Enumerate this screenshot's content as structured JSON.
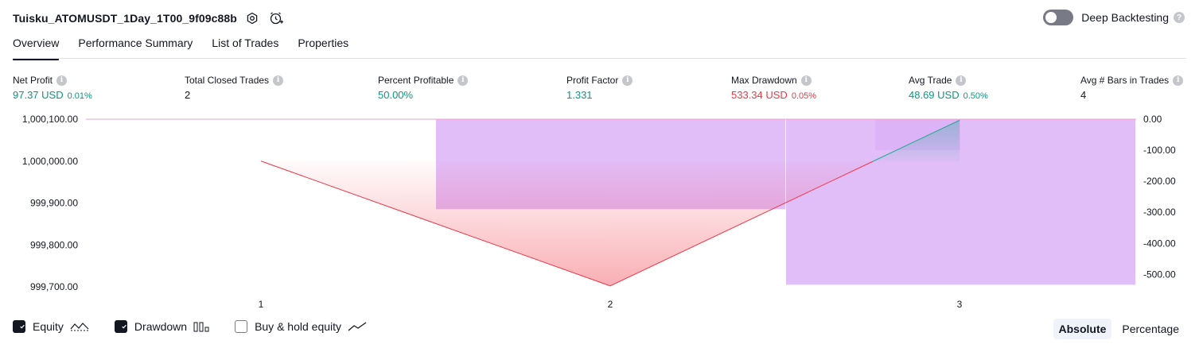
{
  "header": {
    "strategy_title": "Tuisku_ATOMUSDT_1Day_1T00_9f09c88b",
    "settings_icon": "gear-icon",
    "alert_icon": "alarm-clock-plus-icon",
    "deep_backtesting_label": "Deep Backtesting",
    "deep_backtesting_on": false
  },
  "tabs": [
    {
      "label": "Overview",
      "active": true
    },
    {
      "label": "Performance Summary",
      "active": false
    },
    {
      "label": "List of Trades",
      "active": false
    },
    {
      "label": "Properties",
      "active": false
    }
  ],
  "metrics": {
    "net_profit": {
      "label": "Net Profit",
      "value": "97.37 USD",
      "sub": "0.01%"
    },
    "total_closed_trades": {
      "label": "Total Closed Trades",
      "value": "2"
    },
    "percent_profitable": {
      "label": "Percent Profitable",
      "value": "50.00%"
    },
    "profit_factor": {
      "label": "Profit Factor",
      "value": "1.331"
    },
    "max_drawdown": {
      "label": "Max Drawdown",
      "value": "533.34 USD",
      "sub": "0.05%"
    },
    "avg_trade": {
      "label": "Avg Trade",
      "value": "48.69 USD",
      "sub": "0.50%"
    },
    "avg_bars": {
      "label": "Avg # Bars in Trades",
      "value": "4"
    }
  },
  "colors": {
    "positive": "#089981",
    "negative": "#f23645",
    "drawdown_bar": "#ce93f5",
    "equity_line_down": "#f23645",
    "equity_line_up": "#22ab94"
  },
  "chart_data": {
    "type": "line",
    "x": [
      1,
      2,
      3
    ],
    "x_tick_labels": [
      "1",
      "2",
      "3"
    ],
    "equity": [
      1000000.0,
      999702.12,
      1000097.37
    ],
    "drawdown": [
      0,
      -290.0,
      -533.34,
      -99.5
    ],
    "drawdown_x": [
      1.5,
      2.5,
      2.5,
      3.0
    ],
    "left_axis": {
      "ylim": [
        999700.0,
        1000100.0
      ],
      "tick_labels": [
        "1,000,100.00",
        "1,000,000.00",
        "999,900.00",
        "999,800.00",
        "999,700.00"
      ]
    },
    "right_axis": {
      "ylim": [
        -540,
        0
      ],
      "tick_labels": [
        "0.00",
        "-100.00",
        "-200.00",
        "-300.00",
        "-400.00",
        "-500.00"
      ]
    }
  },
  "legend": {
    "items": [
      {
        "label": "Equity",
        "checked": true,
        "icon": "equity-line-icon"
      },
      {
        "label": "Drawdown",
        "checked": true,
        "icon": "drawdown-bars-icon"
      },
      {
        "label": "Buy & hold equity",
        "checked": false,
        "icon": "trend-line-icon"
      }
    ]
  },
  "scale": {
    "absolute_label": "Absolute",
    "percentage_label": "Percentage",
    "active": "Absolute"
  }
}
